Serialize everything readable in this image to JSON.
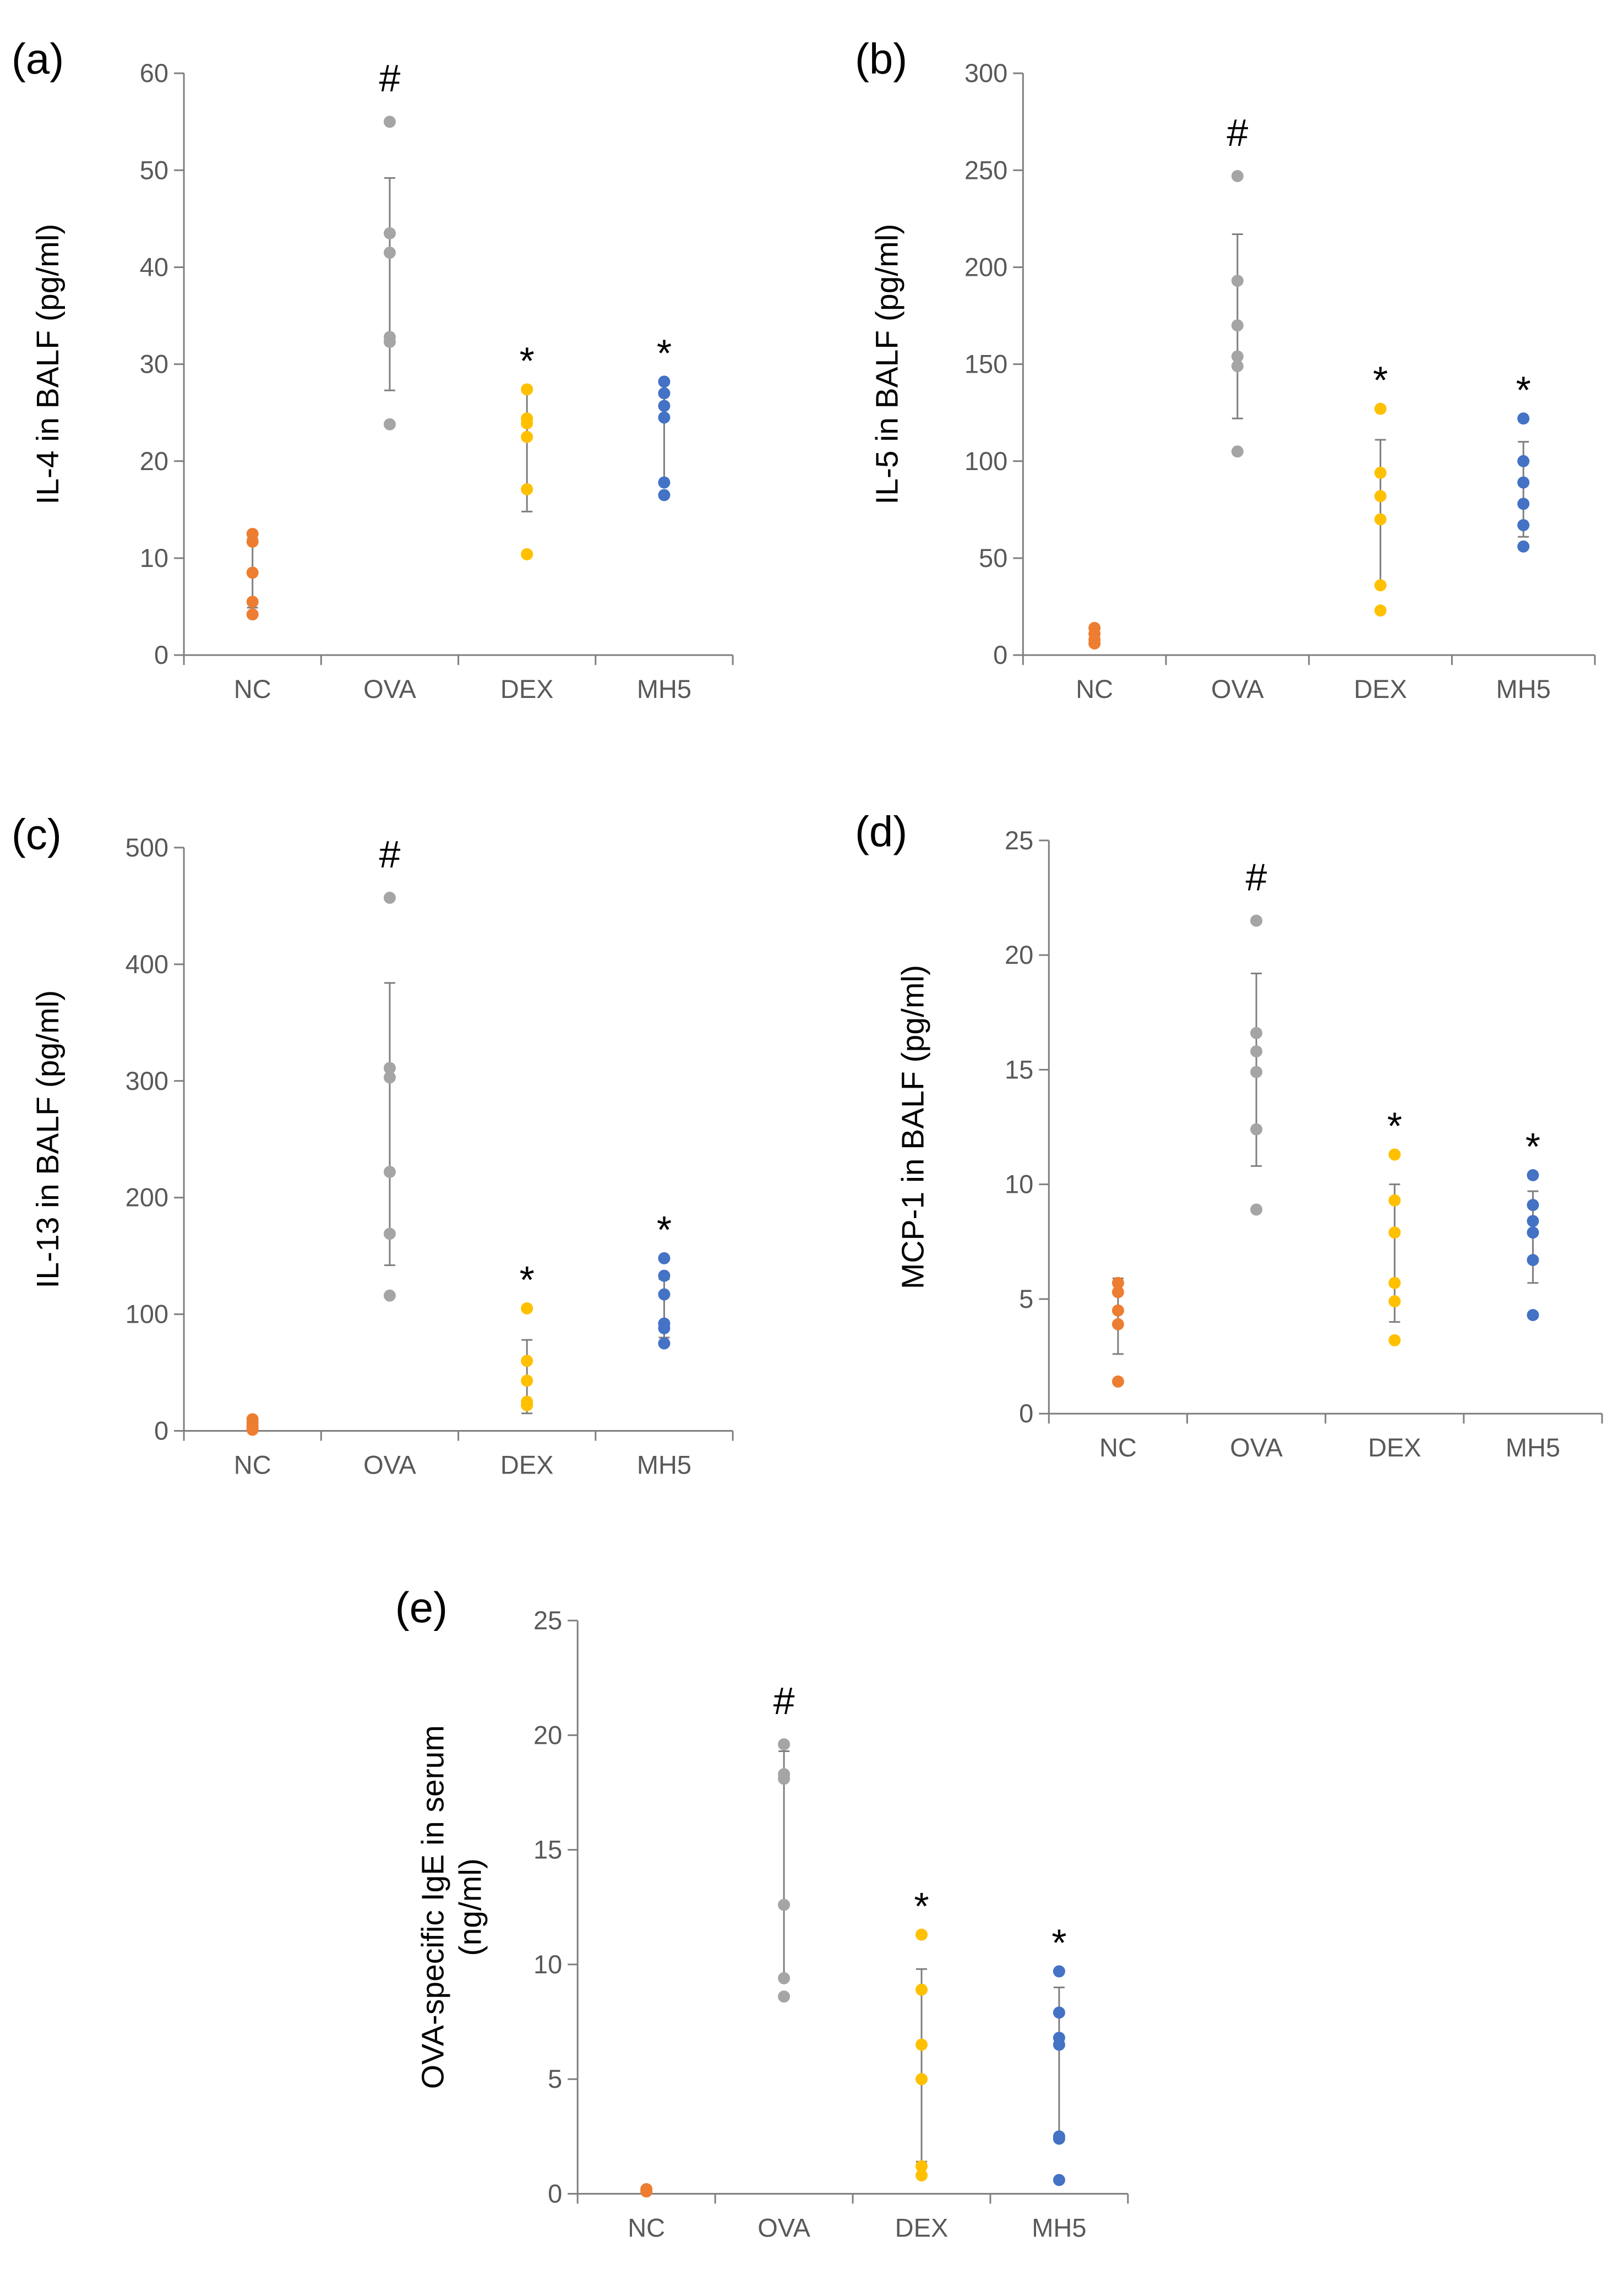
{
  "colors": {
    "NC": "#ED7D31",
    "OVA": "#A5A5A5",
    "DEX": "#FFC000",
    "MH5": "#4472C4",
    "errorbar": "#7F7F7F",
    "axis": "#7F7F7F"
  },
  "chart_data": [
    {
      "type": "scatter",
      "panel": "(a)",
      "ylabel": [
        "IL-4 in BALF (pg/ml)"
      ],
      "ylim": [
        0,
        60
      ],
      "yticks": [
        0,
        10,
        20,
        30,
        40,
        50,
        60
      ],
      "categories": [
        "NC",
        "OVA",
        "DEX",
        "MH5"
      ],
      "points": [
        [
          12.5,
          11.7,
          8.5,
          5.5,
          4.2
        ],
        [
          55,
          43.5,
          41.5,
          32.8,
          32.3,
          23.8
        ],
        [
          27.4,
          24.4,
          23.9,
          22.5,
          17.1,
          10.4
        ],
        [
          28.2,
          27,
          25.7,
          24.5,
          17.8,
          16.5
        ]
      ],
      "errorbars": [
        [
          4.9,
          12.0
        ],
        [
          27.3,
          49.2
        ],
        [
          14.8,
          27.2
        ],
        [
          17.9,
          28.0
        ]
      ],
      "annotations": [
        "",
        "#",
        "*",
        "*"
      ]
    },
    {
      "type": "scatter",
      "panel": "(b)",
      "ylabel": [
        "IL-5 in BALF (pg/ml)"
      ],
      "ylim": [
        0,
        300
      ],
      "yticks": [
        0,
        50,
        100,
        150,
        200,
        250,
        300
      ],
      "categories": [
        "NC",
        "OVA",
        "DEX",
        "MH5"
      ],
      "points": [
        [
          14,
          11,
          8,
          6
        ],
        [
          247,
          193,
          170,
          154,
          149,
          105
        ],
        [
          127,
          94,
          82,
          70,
          36,
          23
        ],
        [
          122,
          100,
          89,
          78,
          67,
          56
        ]
      ],
      "errorbars": [
        [
          5,
          14
        ],
        [
          122,
          217
        ],
        [
          35,
          111
        ],
        [
          61,
          110
        ]
      ],
      "annotations": [
        "",
        "#",
        "*",
        "*"
      ]
    },
    {
      "type": "scatter",
      "panel": "(c)",
      "ylabel": [
        "IL-13 in BALF (pg/ml)"
      ],
      "ylim": [
        0,
        500
      ],
      "yticks": [
        0,
        100,
        200,
        300,
        400,
        500
      ],
      "categories": [
        "NC",
        "OVA",
        "DEX",
        "MH5"
      ],
      "points": [
        [
          10,
          7,
          4,
          2,
          1
        ],
        [
          457,
          311,
          303,
          222,
          169,
          116
        ],
        [
          105,
          60,
          43,
          25,
          22
        ],
        [
          148,
          133,
          117,
          92,
          88,
          75
        ]
      ],
      "errorbars": [
        [
          1,
          9
        ],
        [
          142,
          384
        ],
        [
          15,
          78
        ],
        [
          80,
          130
        ]
      ],
      "annotations": [
        "",
        "#",
        "*",
        "*"
      ]
    },
    {
      "type": "scatter",
      "panel": "(d)",
      "ylabel": [
        "MCP-1 in BALF (pg/ml)"
      ],
      "ylim": [
        0,
        25
      ],
      "yticks": [
        0,
        5,
        10,
        15,
        20,
        25
      ],
      "categories": [
        "NC",
        "OVA",
        "DEX",
        "MH5"
      ],
      "points": [
        [
          5.7,
          5.3,
          4.5,
          3.9,
          1.4
        ],
        [
          21.5,
          16.6,
          15.8,
          14.9,
          12.4,
          8.9
        ],
        [
          11.3,
          9.3,
          7.9,
          5.7,
          4.9,
          3.2
        ],
        [
          10.4,
          9.1,
          8.4,
          7.9,
          6.7,
          4.3
        ]
      ],
      "errorbars": [
        [
          2.6,
          5.9
        ],
        [
          10.8,
          19.2
        ],
        [
          4.0,
          10.0
        ],
        [
          5.7,
          9.7
        ]
      ],
      "annotations": [
        "",
        "#",
        "*",
        "*"
      ]
    },
    {
      "type": "scatter",
      "panel": "(e)",
      "ylabel": [
        "OVA-specific IgE in serum",
        "(ng/ml)"
      ],
      "ylim": [
        0,
        25
      ],
      "yticks": [
        0,
        5,
        10,
        15,
        20,
        25
      ],
      "categories": [
        "NC",
        "OVA",
        "DEX",
        "MH5"
      ],
      "points": [
        [
          0.2,
          0.1
        ],
        [
          19.6,
          18.3,
          18.1,
          12.6,
          9.4,
          8.6
        ],
        [
          11.3,
          8.9,
          6.5,
          5.0,
          1.2,
          0.8
        ],
        [
          9.7,
          7.9,
          6.8,
          6.5,
          2.5,
          2.4,
          0.6
        ]
      ],
      "errorbars": [
        [
          0.05,
          0.25
        ],
        [
          9.4,
          19.3
        ],
        [
          1.4,
          9.8
        ],
        [
          2.4,
          9.0
        ]
      ],
      "annotations": [
        "",
        "#",
        "*",
        "*"
      ]
    }
  ]
}
